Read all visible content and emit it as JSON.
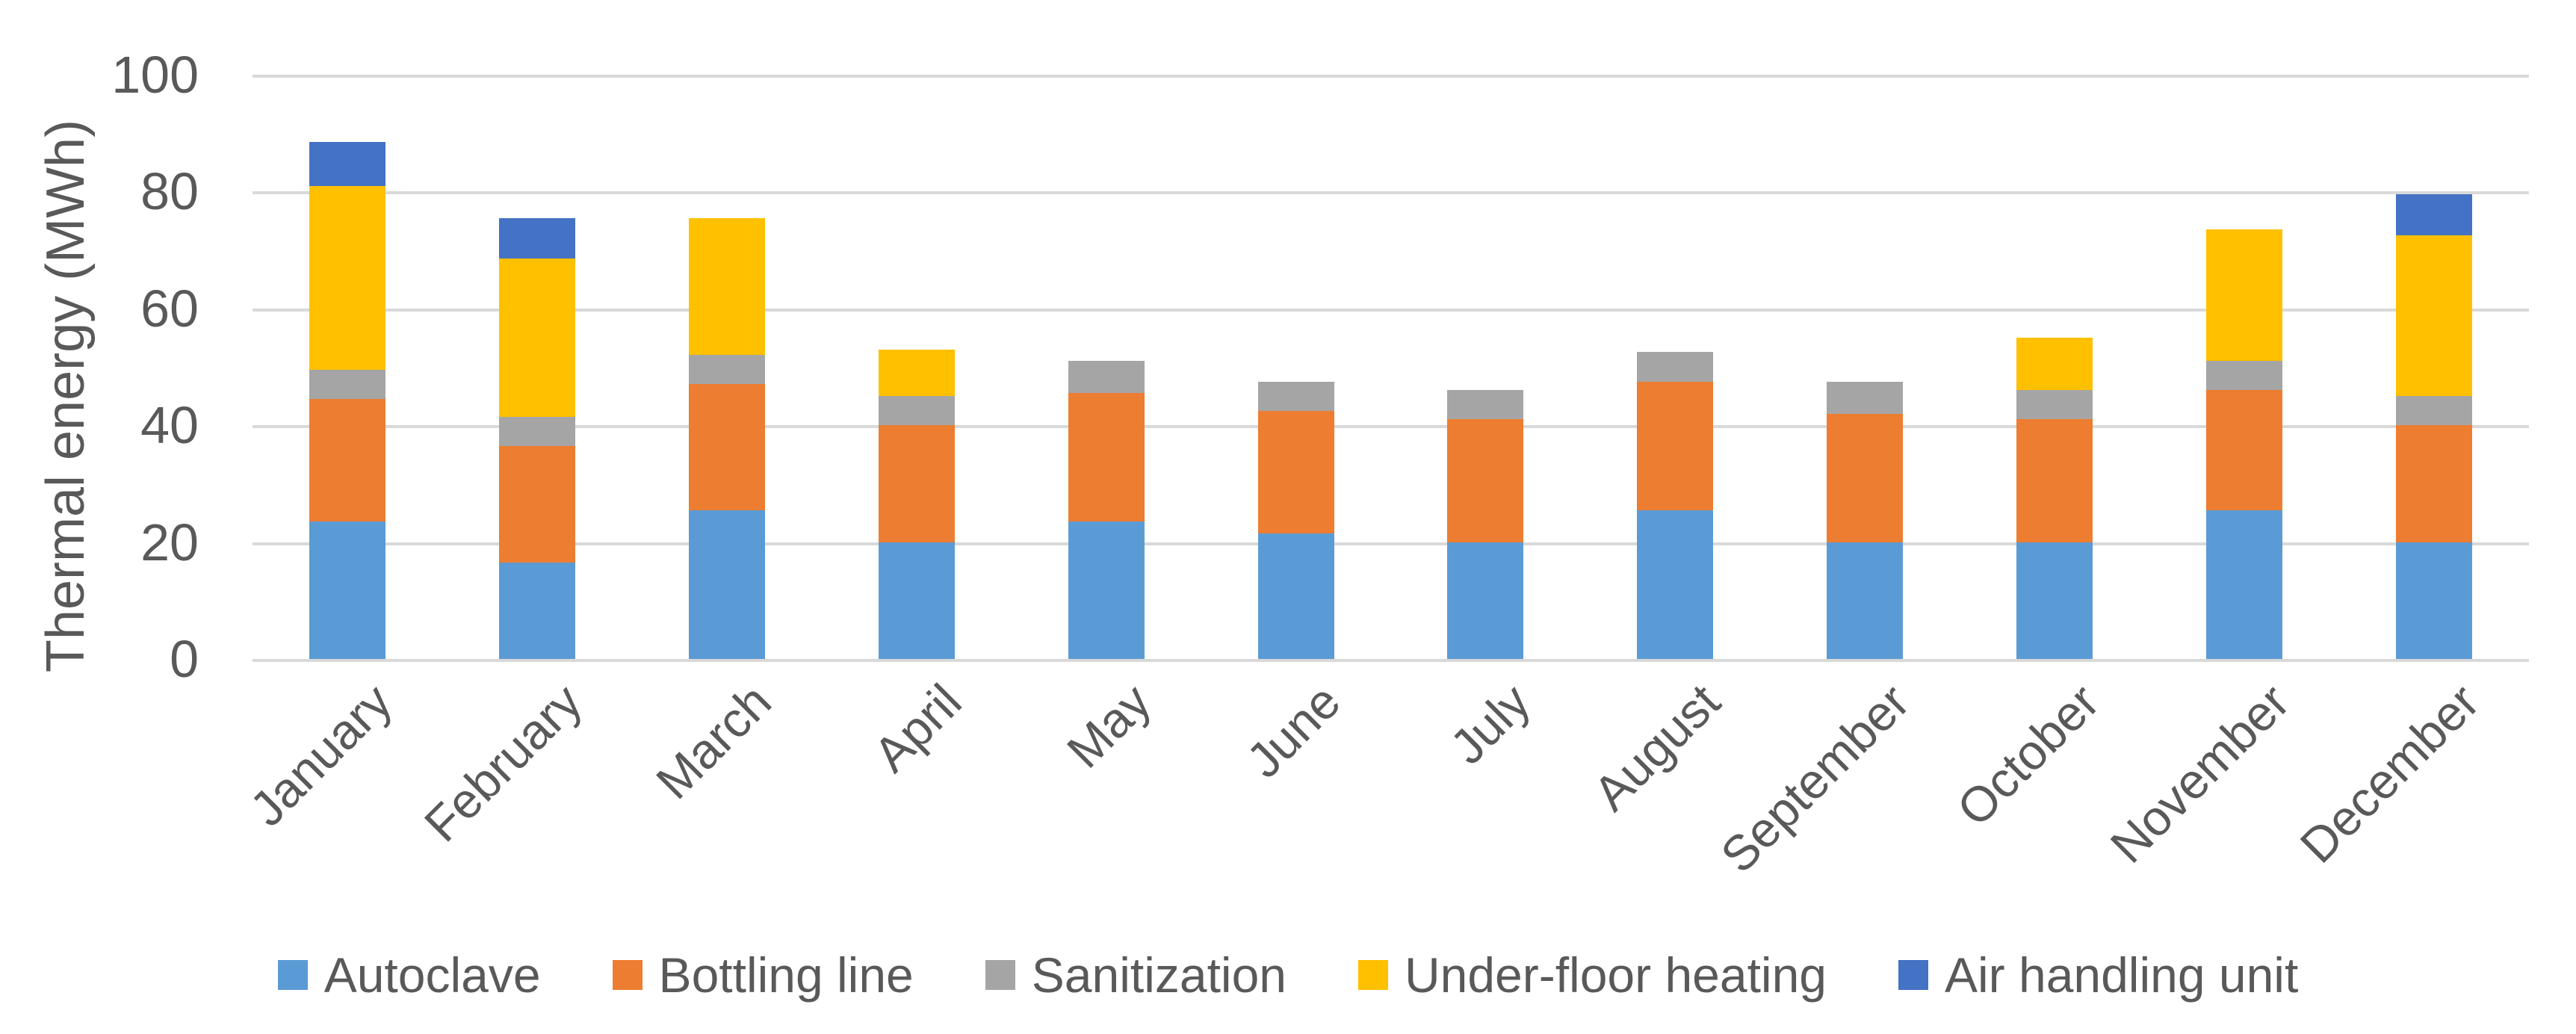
{
  "chart_data": {
    "type": "bar",
    "stacked": true,
    "title": "",
    "xlabel": "",
    "ylabel": "Thermal energy (MWh)",
    "ylim": [
      0,
      100
    ],
    "yticks": [
      0,
      20,
      40,
      60,
      80,
      100
    ],
    "grid": true,
    "legend_position": "bottom-center",
    "categories": [
      "January",
      "February",
      "March",
      "April",
      "May",
      "June",
      "July",
      "August",
      "September",
      "October",
      "November",
      "December"
    ],
    "series": [
      {
        "name": "Autoclave",
        "color": "#5B9BD5",
        "values": [
          23.5,
          16.5,
          25.5,
          20,
          23.5,
          21.5,
          20,
          25.5,
          20,
          20,
          25.5,
          20
        ]
      },
      {
        "name": "Bottling line",
        "color": "#ED7D31",
        "values": [
          21,
          20,
          21.5,
          20,
          22,
          21,
          21,
          22,
          22,
          21,
          20.5,
          20
        ]
      },
      {
        "name": "Sanitization",
        "color": "#A5A5A5",
        "values": [
          5,
          5,
          5,
          5,
          5.5,
          5,
          5,
          5,
          5.5,
          5,
          5,
          5
        ]
      },
      {
        "name": "Under-floor heating",
        "color": "#FFC000",
        "values": [
          31.5,
          27,
          23.5,
          8,
          0,
          0,
          0,
          0,
          0,
          9,
          22.5,
          27.5
        ]
      },
      {
        "name": "Air handling unit",
        "color": "#4472C4",
        "values": [
          7.5,
          7,
          0,
          0,
          0,
          0,
          0,
          0,
          0,
          0,
          0,
          7
        ]
      }
    ],
    "totals": [
      88.5,
      75.5,
      75.5,
      53,
      51,
      47.5,
      46,
      52.5,
      47.5,
      55,
      73.5,
      79.5
    ]
  },
  "colors": {
    "text": "#595959",
    "gridline": "#D9D9D9",
    "background": "#FFFFFF"
  }
}
